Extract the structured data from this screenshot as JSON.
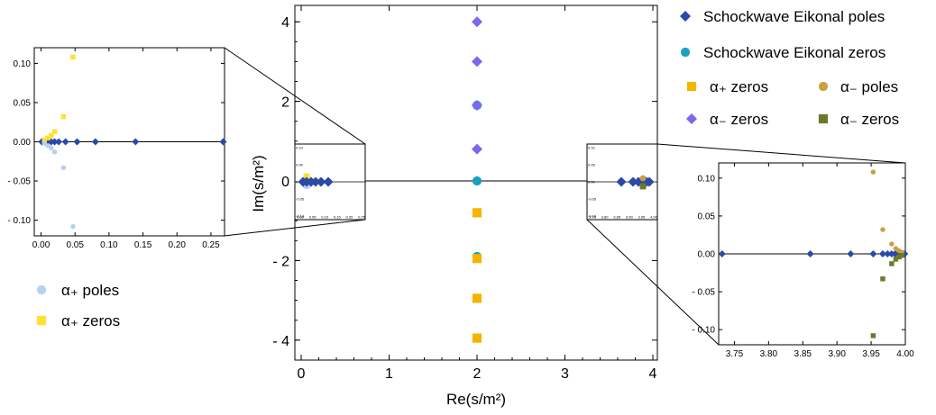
{
  "chart_data": [
    {
      "type": "scatter",
      "role": "main",
      "xlabel": "Re(s/m²)",
      "ylabel": "Im(s/m²)",
      "xlim": [
        -0.05,
        4.05
      ],
      "ylim": [
        -4.5,
        4.5
      ],
      "x_ticks": [
        0,
        1,
        2,
        3,
        4
      ],
      "y_ticks": [
        -4,
        -2,
        0,
        2,
        4
      ],
      "x_tick_labels": [
        "0",
        "1",
        "2",
        "3",
        "4"
      ],
      "y_tick_labels": [
        "- 4",
        "- 2",
        "0",
        "2",
        "4"
      ],
      "real_axis_line": true,
      "series": [
        {
          "name": "Schockwave Eikonal poles",
          "marker": "diamond",
          "color": "#2a4aa6",
          "points": [
            [
              0.01,
              0
            ],
            [
              0.02,
              0
            ],
            [
              0.04,
              0
            ],
            [
              0.08,
              0
            ],
            [
              0.14,
              0
            ],
            [
              0.27,
              0
            ],
            [
              3.73,
              0
            ],
            [
              3.86,
              0
            ],
            [
              3.92,
              0
            ],
            [
              3.96,
              0
            ],
            [
              3.98,
              0
            ],
            [
              3.99,
              0
            ]
          ]
        },
        {
          "name": "Schockwave Eikonal zeros",
          "marker": "circle",
          "color": "#1aa0c0",
          "points": [
            [
              2,
              0
            ],
            [
              2,
              1.9
            ],
            [
              2,
              -1.9
            ]
          ]
        },
        {
          "name": "α₊ zeros",
          "marker": "square",
          "color": "#f5b400",
          "points": [
            [
              2,
              -0.8
            ],
            [
              2,
              -1.95
            ],
            [
              2,
              -2.95
            ],
            [
              2,
              -3.95
            ]
          ]
        },
        {
          "name": "α₋ poles",
          "marker": "circle",
          "color": "#c8a040",
          "points": [
            [
              3.96,
              0.05
            ],
            [
              3.97,
              0.03
            ]
          ]
        },
        {
          "name": "α₋ zeros",
          "marker": "diamond",
          "color": "#7b68ee",
          "points": [
            [
              2,
              0.8
            ],
            [
              2,
              1.9
            ],
            [
              2,
              3.0
            ],
            [
              2,
              4.0
            ]
          ]
        },
        {
          "name": "α₋ zeros",
          "marker": "square",
          "color": "#6b7a2a",
          "points": [
            [
              3.96,
              -0.05
            ],
            [
              3.97,
              -0.03
            ]
          ]
        },
        {
          "name": "α₊ poles",
          "marker": "circle",
          "color": "#b8cff0",
          "points": [
            [
              0.02,
              -0.03
            ],
            [
              0.03,
              0.03
            ]
          ]
        }
      ]
    },
    {
      "type": "scatter",
      "role": "left-inset",
      "xlim": [
        -0.01,
        0.27
      ],
      "ylim": [
        -0.12,
        0.12
      ],
      "x_ticks": [
        0.0,
        0.05,
        0.1,
        0.15,
        0.2,
        0.25
      ],
      "x_tick_labels": [
        "0.00",
        "0.05",
        "0.10",
        "0.15",
        "0.20",
        "0.25"
      ],
      "y_ticks": [
        -0.1,
        -0.05,
        0.0,
        0.05,
        0.1
      ],
      "y_tick_labels": [
        "- 0.10",
        "- 0.05",
        "0.00",
        "0.05",
        "0.10"
      ],
      "series": [
        {
          "name": "Schockwave Eikonal poles",
          "marker": "diamond",
          "color": "#2a4aa6",
          "points": [
            [
              0.001,
              0
            ],
            [
              0.003,
              0
            ],
            [
              0.005,
              0
            ],
            [
              0.008,
              0
            ],
            [
              0.011,
              0
            ],
            [
              0.015,
              0
            ],
            [
              0.02,
              0
            ],
            [
              0.026,
              0
            ],
            [
              0.036,
              0
            ],
            [
              0.053,
              0
            ],
            [
              0.08,
              0
            ],
            [
              0.139,
              0
            ],
            [
              0.268,
              0
            ]
          ]
        },
        {
          "name": "α₊ zeros",
          "marker": "square",
          "color": "#ffe033",
          "points": [
            [
              0.005,
              0.002
            ],
            [
              0.01,
              0.005
            ],
            [
              0.015,
              0.008
            ],
            [
              0.02,
              0.013
            ],
            [
              0.033,
              0.032
            ],
            [
              0.047,
              0.108
            ]
          ]
        },
        {
          "name": "α₊ poles",
          "marker": "circle",
          "color": "#b8cff0",
          "points": [
            [
              0.005,
              -0.002
            ],
            [
              0.01,
              -0.005
            ],
            [
              0.015,
              -0.008
            ],
            [
              0.02,
              -0.013
            ],
            [
              0.033,
              -0.033
            ],
            [
              0.047,
              -0.108
            ]
          ]
        }
      ],
      "legend": [
        {
          "label": "α₊ poles",
          "marker": "circle",
          "color": "#b8cff0"
        },
        {
          "label": "α₊ zeros",
          "marker": "square",
          "color": "#ffe033"
        }
      ]
    },
    {
      "type": "scatter",
      "role": "right-inset",
      "xlim": [
        3.727,
        4.0
      ],
      "ylim": [
        -0.12,
        0.12
      ],
      "x_ticks": [
        3.75,
        3.8,
        3.85,
        3.9,
        3.95,
        4.0
      ],
      "x_tick_labels": [
        "3.75",
        "3.80",
        "3.85",
        "3.90",
        "3.95",
        "4.00"
      ],
      "y_ticks": [
        -0.1,
        -0.05,
        0.0,
        0.05,
        0.1
      ],
      "y_tick_labels": [
        "- 0.10",
        "- 0.05",
        "0.00",
        "0.05",
        "0.10"
      ],
      "series": [
        {
          "name": "Schockwave Eikonal poles",
          "marker": "diamond",
          "color": "#2a4aa6",
          "points": [
            [
              3.732,
              0
            ],
            [
              3.861,
              0
            ],
            [
              3.92,
              0
            ],
            [
              3.953,
              0
            ],
            [
              3.967,
              0
            ],
            [
              3.974,
              0
            ],
            [
              3.98,
              0
            ],
            [
              3.985,
              0
            ],
            [
              3.989,
              0
            ],
            [
              3.992,
              0
            ],
            [
              3.995,
              0
            ],
            [
              3.997,
              0
            ],
            [
              3.999,
              0
            ]
          ]
        },
        {
          "name": "α₋ poles",
          "marker": "circle",
          "color": "#c8a040",
          "points": [
            [
              3.953,
              0.108
            ],
            [
              3.967,
              0.032
            ],
            [
              3.98,
              0.013
            ],
            [
              3.986,
              0.007
            ],
            [
              3.991,
              0.004
            ],
            [
              3.995,
              0.002
            ]
          ]
        },
        {
          "name": "α₋ zeros",
          "marker": "square",
          "color": "#6b7a2a",
          "points": [
            [
              3.953,
              -0.108
            ],
            [
              3.967,
              -0.033
            ],
            [
              3.98,
              -0.013
            ],
            [
              3.986,
              -0.007
            ],
            [
              3.991,
              -0.004
            ],
            [
              3.995,
              -0.002
            ]
          ]
        }
      ]
    }
  ],
  "legend_main": [
    {
      "label": "Schockwave Eikonal poles",
      "marker": "diamond",
      "color": "#2a4aa6"
    },
    {
      "label": "Schockwave Eikonal zeros",
      "marker": "circle",
      "color": "#1aa0c0"
    },
    {
      "label": "α₊ zeros",
      "marker": "square",
      "color": "#f5b400"
    },
    {
      "label": "α₋  poles",
      "marker": "circle",
      "color": "#c8a040"
    },
    {
      "label": "α₋  zeros",
      "marker": "diamond",
      "color": "#7b68ee"
    },
    {
      "label": "α₋  zeros",
      "marker": "square",
      "color": "#6b7a2a"
    }
  ],
  "mini_tick_labels": {
    "left_box_y": [
      "0.10",
      "0.05",
      "0.00",
      "-0.05",
      "-0.10"
    ],
    "left_box_x": [
      "0.00",
      "0.05",
      "0.10",
      "0.15",
      "0.20",
      "0.25"
    ],
    "right_box_y": [
      "0.10",
      "0.05",
      "0.00",
      "-0.05",
      "-0.10"
    ],
    "right_box_x": [
      "3.75",
      "3.80",
      "3.85",
      "3.90",
      "3.95",
      "4.00"
    ]
  }
}
